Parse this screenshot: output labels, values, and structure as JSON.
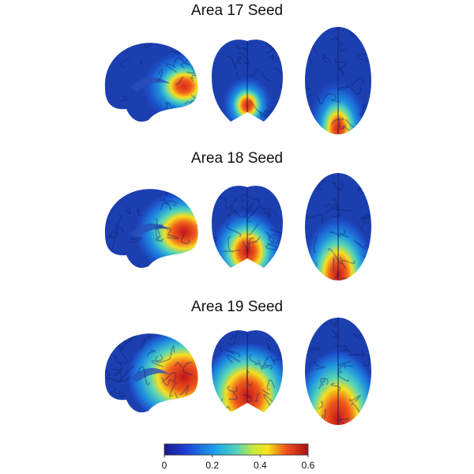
{
  "panels": [
    {
      "title": "Area 17 Seed"
    },
    {
      "title": "Area 18 Seed"
    },
    {
      "title": "Area 19 Seed"
    }
  ],
  "colorbar": {
    "lim": [
      0,
      0.6
    ],
    "ticks": [
      0,
      0.2,
      0.4,
      0.6
    ]
  }
}
